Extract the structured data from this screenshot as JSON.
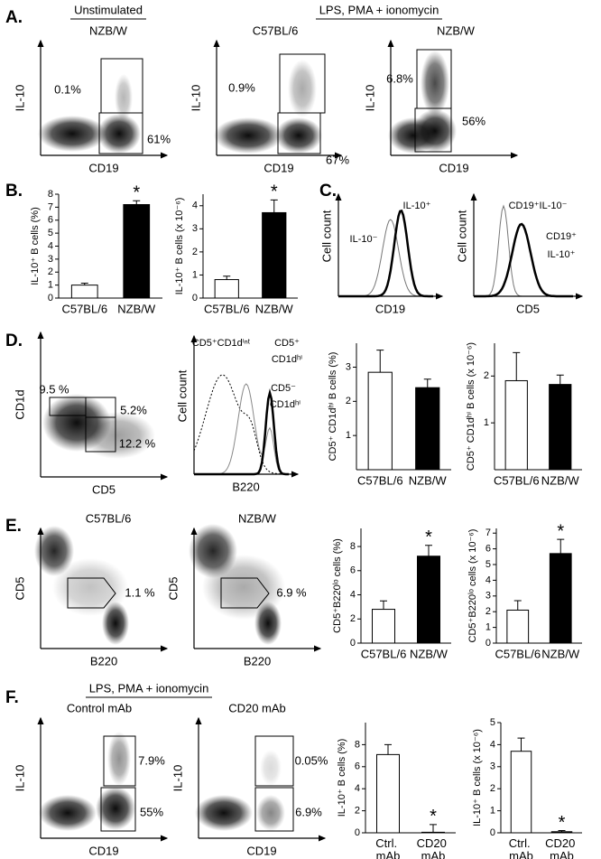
{
  "panel_labels": [
    "A.",
    "B.",
    "C.",
    "D.",
    "E.",
    "F."
  ],
  "headers": {
    "a_left": "Unstimulated",
    "a_right": "LPS, PMA + ionomycin",
    "f": "LPS, PMA + ionomycin"
  },
  "flow_plots": [
    {
      "title": "NZB/W",
      "x_label": "CD19",
      "y_label": "IL-10",
      "gates": [
        "0.1%",
        "61%"
      ]
    },
    {
      "title": "C57BL/6",
      "x_label": "CD19",
      "y_label": "IL-10",
      "gates": [
        "0.9%",
        "67%"
      ]
    },
    {
      "title": "NZB/W",
      "x_label": "CD19",
      "y_label": "IL-10",
      "gates": [
        "6.8%",
        "56%"
      ]
    },
    {
      "x_label": "CD5",
      "y_label": "CD1d",
      "gates": [
        "9.5 %",
        "5.2%",
        "12.2 %"
      ]
    },
    {
      "title": "C57BL/6",
      "x_label": "B220",
      "y_label": "CD5",
      "gates": [
        "1.1 %"
      ]
    },
    {
      "title": "NZB/W",
      "x_label": "B220",
      "y_label": "CD5",
      "gates": [
        "6.9 %"
      ]
    },
    {
      "title": "Control mAb",
      "x_label": "CD19",
      "y_label": "IL-10",
      "gates": [
        "7.9%",
        "55%"
      ]
    },
    {
      "title": "CD20 mAb",
      "x_label": "CD19",
      "y_label": "IL-10",
      "gates": [
        "0.05%",
        "6.9%"
      ]
    }
  ],
  "histograms": [
    {
      "x_label": "CD19",
      "y_label": "Cell count",
      "labels": [
        "IL-10⁻",
        "IL-10⁺"
      ]
    },
    {
      "x_label": "CD5",
      "y_label": "Cell count",
      "labels": [
        "CD19⁺IL-10⁻",
        "CD19⁺",
        "IL-10⁺"
      ]
    },
    {
      "x_label": "B220",
      "y_label": "Cell count",
      "labels": [
        "CD5⁺CD1dⁱⁿᵗ",
        "CD5⁺",
        "CD1dʰⁱ",
        "CD5⁻",
        "CD1dʰⁱ"
      ]
    }
  ],
  "chart_data": [
    {
      "type": "bar",
      "y_label": "IL-10⁺ B cells (%)",
      "categories": [
        "C57BL/6",
        "NZB/W"
      ],
      "values": [
        1.0,
        7.2
      ],
      "errors": [
        0.15,
        0.3
      ],
      "colors": [
        "#ffffff",
        "#000000"
      ],
      "ylim": [
        0,
        8
      ],
      "yticks": [
        0,
        1,
        2,
        3,
        4,
        5,
        6,
        7,
        8
      ],
      "annotations": [
        {
          "text": "*",
          "category": "NZB/W"
        }
      ]
    },
    {
      "type": "bar",
      "y_label": "IL-10⁺ B cells (x 10⁻⁶)",
      "categories": [
        "C57BL/6",
        "NZB/W"
      ],
      "values": [
        0.8,
        3.7
      ],
      "errors": [
        0.15,
        0.55
      ],
      "colors": [
        "#ffffff",
        "#000000"
      ],
      "ylim": [
        0,
        4.5
      ],
      "yticks": [
        0,
        1,
        2,
        3,
        4
      ],
      "annotations": [
        {
          "text": "*",
          "category": "NZB/W"
        }
      ]
    },
    {
      "type": "bar",
      "y_label": "CD5⁺ CD1dʰⁱ B cells (%)",
      "categories": [
        "C57BL/6",
        "NZB/W"
      ],
      "values": [
        2.85,
        2.4
      ],
      "errors": [
        0.65,
        0.25
      ],
      "colors": [
        "#ffffff",
        "#000000"
      ],
      "ylim": [
        0,
        3.7
      ],
      "yticks": [
        1,
        2,
        3
      ],
      "annotations": []
    },
    {
      "type": "bar",
      "y_label": "CD5⁺ CD1dʰⁱ B cells (x 10⁻⁶)",
      "categories": [
        "C57BL/6",
        "NZB/W"
      ],
      "values": [
        1.9,
        1.82
      ],
      "errors": [
        0.6,
        0.2
      ],
      "colors": [
        "#ffffff",
        "#000000"
      ],
      "ylim": [
        0,
        2.7
      ],
      "yticks": [
        1,
        2
      ],
      "annotations": []
    },
    {
      "type": "bar",
      "y_label": "CD5⁺B220ˡᵒ cells (%)",
      "categories": [
        "C57BL/6",
        "NZB/W"
      ],
      "values": [
        2.8,
        7.2
      ],
      "errors": [
        0.7,
        0.9
      ],
      "colors": [
        "#ffffff",
        "#000000"
      ],
      "ylim": [
        0,
        9.5
      ],
      "yticks": [
        0,
        2,
        4,
        6,
        8
      ],
      "annotations": [
        {
          "text": "*",
          "category": "NZB/W"
        }
      ]
    },
    {
      "type": "bar",
      "y_label": "CD5⁺B220ˡᵒ cells (x 10⁻⁶)",
      "categories": [
        "C57BL/6",
        "NZB/W"
      ],
      "values": [
        2.1,
        5.7
      ],
      "errors": [
        0.6,
        0.9
      ],
      "colors": [
        "#ffffff",
        "#000000"
      ],
      "ylim": [
        0,
        7.3
      ],
      "yticks": [
        0,
        1,
        2,
        3,
        4,
        5,
        6,
        7
      ],
      "annotations": [
        {
          "text": "*",
          "category": "NZB/W"
        }
      ]
    },
    {
      "type": "bar",
      "y_label": "IL-10⁺ B cells (%)",
      "categories": [
        "Ctrl. mAb",
        "CD20 mAb"
      ],
      "values": [
        7.1,
        0.05
      ],
      "errors": [
        0.9,
        0.7
      ],
      "colors": [
        "#ffffff",
        "#000000"
      ],
      "ylim": [
        0,
        10
      ],
      "yticks": [
        0,
        2,
        4,
        6,
        8
      ],
      "annotations": [
        {
          "text": "*",
          "category": "CD20 mAb"
        }
      ]
    },
    {
      "type": "bar",
      "y_label": "IL-10⁺ B cells (x 10⁻⁶)",
      "categories": [
        "Ctrl. mAb",
        "CD20 mAb"
      ],
      "values": [
        3.7,
        0.05
      ],
      "errors": [
        0.6,
        0.05
      ],
      "colors": [
        "#ffffff",
        "#000000"
      ],
      "ylim": [
        0,
        5
      ],
      "yticks": [
        0,
        1,
        2,
        3,
        4,
        5
      ],
      "annotations": [
        {
          "text": "*",
          "category": "CD20 mAb"
        }
      ]
    }
  ]
}
